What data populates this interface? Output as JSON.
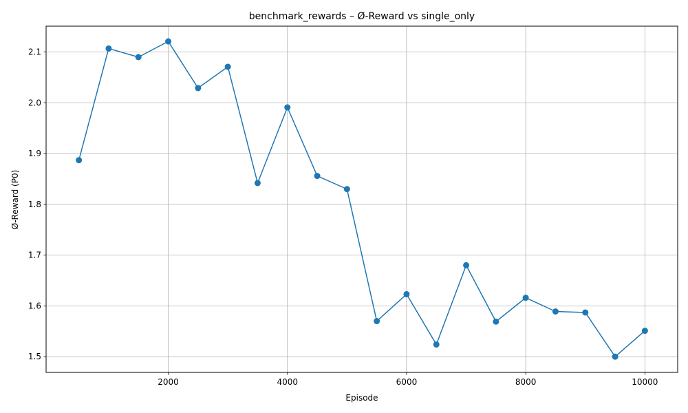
{
  "chart_data": {
    "type": "line",
    "title": "benchmark_rewards – Ø-Reward vs single_only",
    "xlabel": "Episode",
    "ylabel": "Ø-Reward (P0)",
    "xlim": [
      -50,
      10550
    ],
    "ylim": [
      1.469,
      2.151
    ],
    "xticks": [
      2000,
      4000,
      6000,
      8000,
      10000
    ],
    "xtick_labels": [
      "2000",
      "4000",
      "6000",
      "8000",
      "10000"
    ],
    "yticks": [
      1.5,
      1.6,
      1.7,
      1.8,
      1.9,
      2.0,
      2.1
    ],
    "ytick_labels": [
      "1.5",
      "1.6",
      "1.7",
      "1.8",
      "1.9",
      "2.0",
      "2.1"
    ],
    "grid": true,
    "series": [
      {
        "color": "#1f77b4",
        "marker": "circle",
        "x": [
          500,
          1000,
          1500,
          2000,
          2500,
          3000,
          3500,
          4000,
          4500,
          5000,
          5500,
          6000,
          6500,
          7000,
          7500,
          8000,
          8500,
          9000,
          9500,
          10000
        ],
        "y": [
          1.887,
          2.107,
          2.09,
          2.121,
          2.029,
          2.071,
          1.842,
          1.991,
          1.856,
          1.83,
          1.57,
          1.623,
          1.524,
          1.68,
          1.569,
          1.616,
          1.589,
          1.587,
          1.5,
          1.551
        ]
      }
    ]
  }
}
